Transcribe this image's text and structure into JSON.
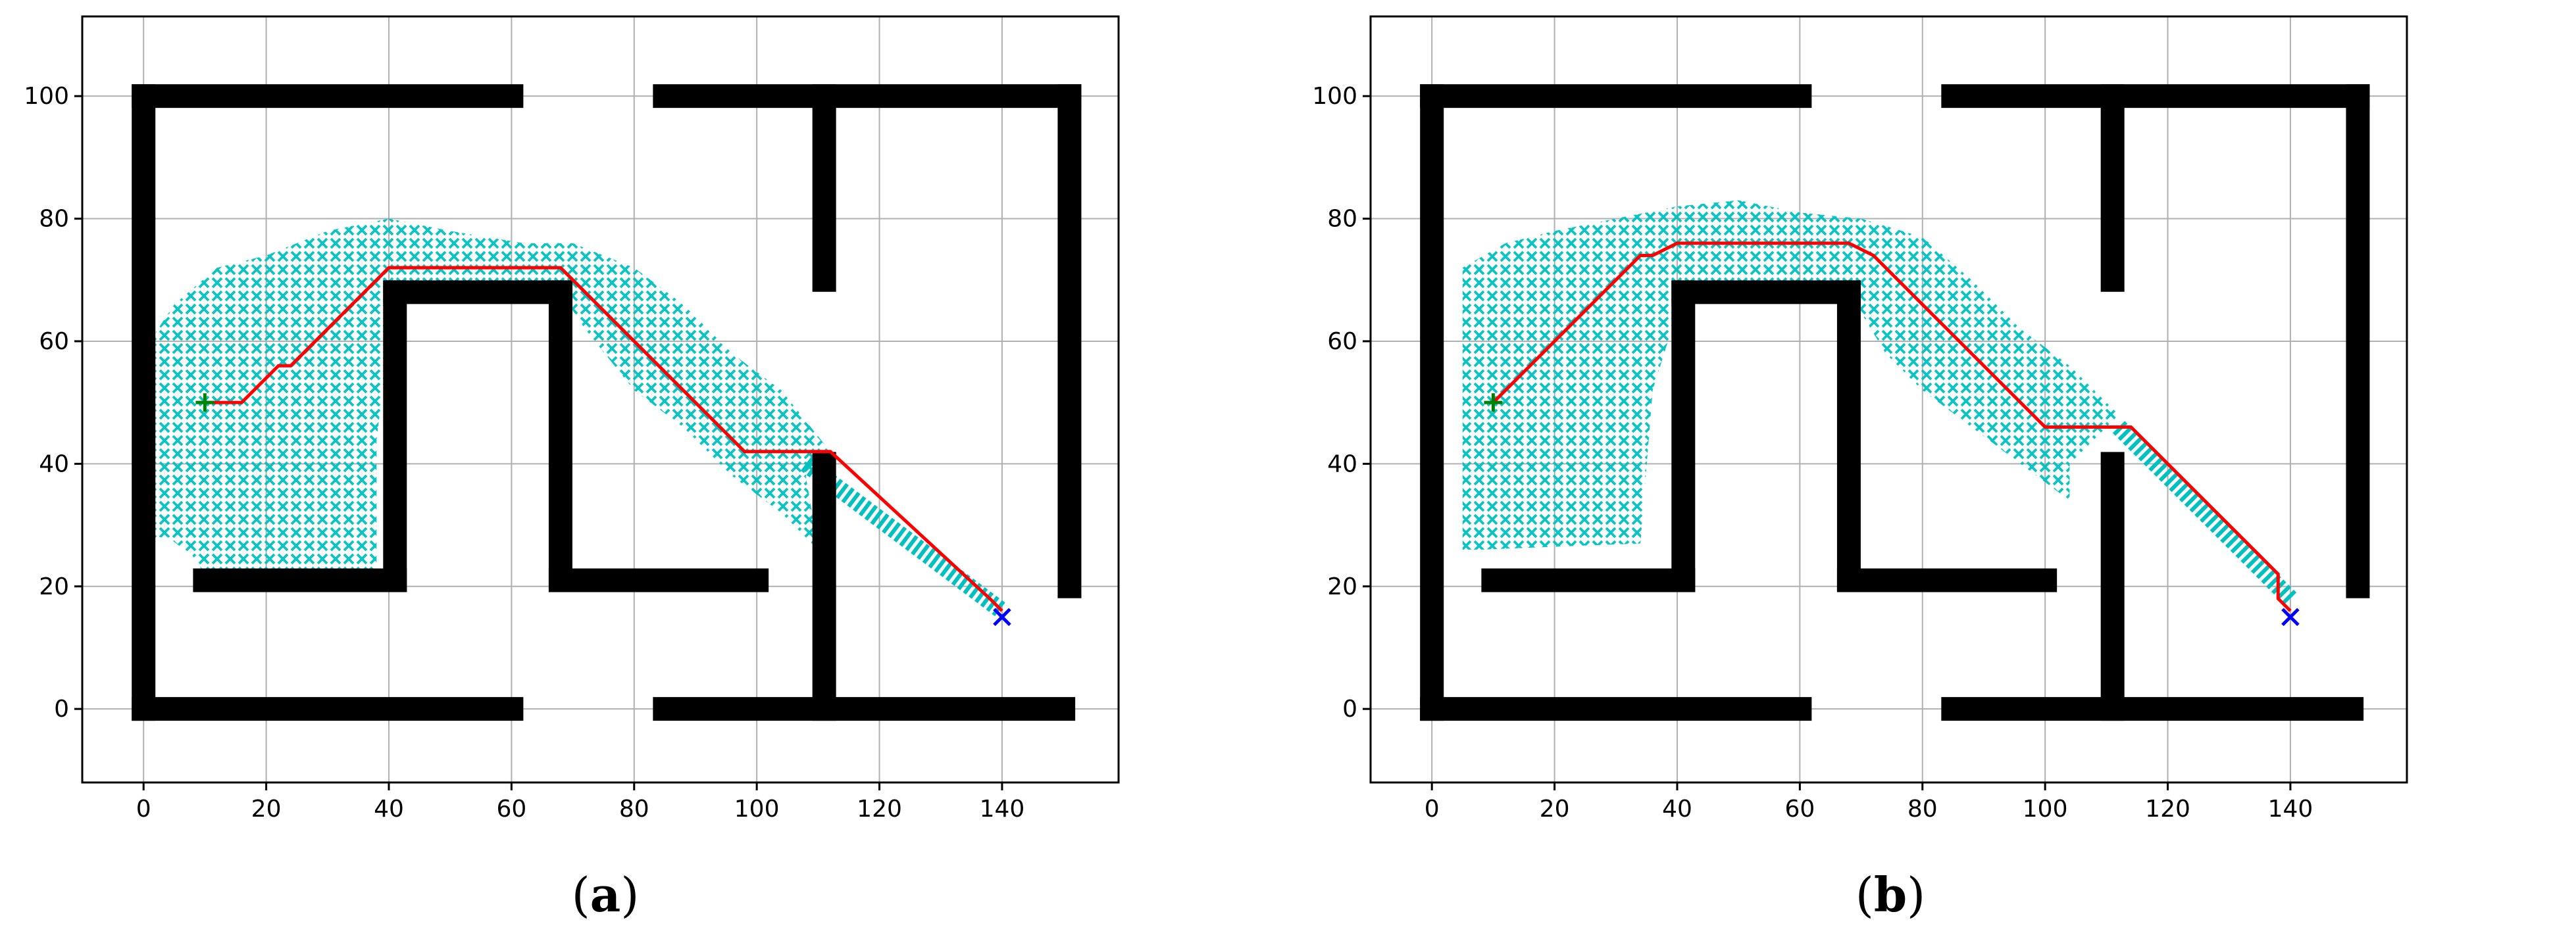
{
  "chart_data": [
    {
      "type": "scatter",
      "panel_label": "a",
      "xlim": [
        -10,
        159
      ],
      "ylim": [
        -12,
        113
      ],
      "xticks": [
        0,
        20,
        40,
        60,
        80,
        100,
        120,
        140
      ],
      "yticks": [
        0,
        20,
        40,
        60,
        80,
        100
      ],
      "grid": true,
      "colors": {
        "obstacle": "#000000",
        "explored": "#00c0c0",
        "path": "#ff0000",
        "start": "#008000",
        "goal": "#0000ff"
      },
      "obstacles": [
        {
          "x1": 0,
          "y1": 0,
          "x2": 0,
          "y2": 100
        },
        {
          "x1": 0,
          "y1": 100,
          "x2": 60,
          "y2": 100
        },
        {
          "x1": 0,
          "y1": 0,
          "x2": 60,
          "y2": 0
        },
        {
          "x1": 85,
          "y1": 100,
          "x2": 151,
          "y2": 100
        },
        {
          "x1": 151,
          "y1": 100,
          "x2": 151,
          "y2": 20
        },
        {
          "x1": 111,
          "y1": 100,
          "x2": 111,
          "y2": 70
        },
        {
          "x1": 85,
          "y1": 0,
          "x2": 150,
          "y2": 0
        },
        {
          "x1": 111,
          "y1": 0,
          "x2": 111,
          "y2": 40
        },
        {
          "x1": 10,
          "y1": 21,
          "x2": 41,
          "y2": 21
        },
        {
          "x1": 41,
          "y1": 21,
          "x2": 41,
          "y2": 68
        },
        {
          "x1": 41,
          "y1": 68,
          "x2": 68,
          "y2": 68
        },
        {
          "x1": 68,
          "y1": 68,
          "x2": 68,
          "y2": 21
        },
        {
          "x1": 68,
          "y1": 21,
          "x2": 100,
          "y2": 21
        }
      ],
      "explored_region": [
        [
          1,
          28
        ],
        [
          1,
          60
        ],
        [
          5,
          66
        ],
        [
          12,
          72
        ],
        [
          20,
          74
        ],
        [
          30,
          78
        ],
        [
          40,
          80
        ],
        [
          50,
          78
        ],
        [
          62,
          76
        ],
        [
          70,
          76
        ],
        [
          80,
          72
        ],
        [
          88,
          66
        ],
        [
          96,
          58
        ],
        [
          104,
          52
        ],
        [
          112,
          42
        ],
        [
          108,
          38
        ],
        [
          110,
          26
        ],
        [
          104,
          32
        ],
        [
          96,
          38
        ],
        [
          88,
          46
        ],
        [
          80,
          52
        ],
        [
          72,
          62
        ],
        [
          68,
          68
        ],
        [
          41,
          68
        ],
        [
          38,
          44
        ],
        [
          38,
          22
        ],
        [
          10,
          22
        ],
        [
          8,
          25
        ],
        [
          4,
          28
        ]
      ],
      "explored_tail": [
        [
          108,
          40
        ],
        [
          140,
          16
        ]
      ],
      "path": [
        [
          10,
          50
        ],
        [
          16,
          50
        ],
        [
          22,
          56
        ],
        [
          24,
          56
        ],
        [
          40,
          72
        ],
        [
          68,
          72
        ],
        [
          98,
          42
        ],
        [
          112,
          42
        ],
        [
          138,
          18
        ],
        [
          140,
          16
        ]
      ],
      "start": [
        10,
        50
      ],
      "goal": [
        140,
        15
      ]
    },
    {
      "type": "scatter",
      "panel_label": "b",
      "xlim": [
        -10,
        159
      ],
      "ylim": [
        -12,
        113
      ],
      "xticks": [
        0,
        20,
        40,
        60,
        80,
        100,
        120,
        140
      ],
      "yticks": [
        0,
        20,
        40,
        60,
        80,
        100
      ],
      "grid": true,
      "colors": {
        "obstacle": "#000000",
        "explored": "#00c0c0",
        "path": "#ff0000",
        "start": "#008000",
        "goal": "#0000ff"
      },
      "obstacles": [
        {
          "x1": 0,
          "y1": 0,
          "x2": 0,
          "y2": 100
        },
        {
          "x1": 0,
          "y1": 100,
          "x2": 60,
          "y2": 100
        },
        {
          "x1": 0,
          "y1": 0,
          "x2": 60,
          "y2": 0
        },
        {
          "x1": 85,
          "y1": 100,
          "x2": 151,
          "y2": 100
        },
        {
          "x1": 151,
          "y1": 100,
          "x2": 151,
          "y2": 20
        },
        {
          "x1": 111,
          "y1": 100,
          "x2": 111,
          "y2": 70
        },
        {
          "x1": 85,
          "y1": 0,
          "x2": 150,
          "y2": 0
        },
        {
          "x1": 111,
          "y1": 0,
          "x2": 111,
          "y2": 40
        },
        {
          "x1": 10,
          "y1": 21,
          "x2": 41,
          "y2": 21
        },
        {
          "x1": 41,
          "y1": 21,
          "x2": 41,
          "y2": 68
        },
        {
          "x1": 41,
          "y1": 68,
          "x2": 68,
          "y2": 68
        },
        {
          "x1": 68,
          "y1": 68,
          "x2": 68,
          "y2": 21
        },
        {
          "x1": 68,
          "y1": 21,
          "x2": 100,
          "y2": 21
        }
      ],
      "explored_region": [
        [
          5,
          26
        ],
        [
          5,
          72
        ],
        [
          12,
          76
        ],
        [
          20,
          78
        ],
        [
          30,
          80
        ],
        [
          40,
          82
        ],
        [
          50,
          83
        ],
        [
          60,
          81
        ],
        [
          70,
          80
        ],
        [
          80,
          77
        ],
        [
          88,
          70
        ],
        [
          96,
          62
        ],
        [
          104,
          56
        ],
        [
          112,
          48
        ],
        [
          108,
          44
        ],
        [
          104,
          40
        ],
        [
          104,
          34
        ],
        [
          96,
          40
        ],
        [
          88,
          46
        ],
        [
          80,
          52
        ],
        [
          74,
          58
        ],
        [
          68,
          68
        ],
        [
          41,
          68
        ],
        [
          36,
          52
        ],
        [
          34,
          27
        ],
        [
          8,
          26
        ]
      ],
      "explored_tail": [
        [
          112,
          46
        ],
        [
          140,
          18
        ]
      ],
      "path": [
        [
          10,
          50
        ],
        [
          34,
          74
        ],
        [
          36,
          74
        ],
        [
          40,
          76
        ],
        [
          68,
          76
        ],
        [
          72,
          74
        ],
        [
          100,
          46
        ],
        [
          114,
          46
        ],
        [
          138,
          22
        ],
        [
          138,
          18
        ],
        [
          140,
          16
        ]
      ],
      "start": [
        10,
        50
      ],
      "goal": [
        140,
        15
      ]
    }
  ],
  "captions": {
    "a": "a",
    "b": "b"
  }
}
